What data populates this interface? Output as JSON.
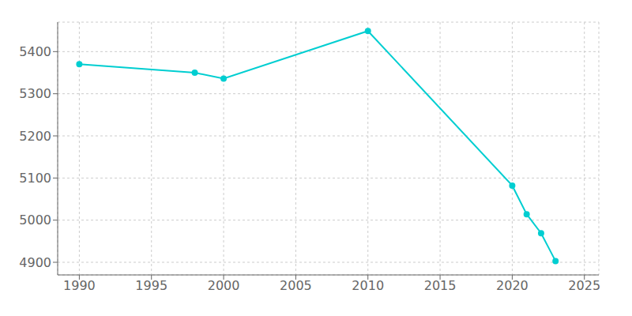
{
  "chart_data": {
    "type": "line",
    "x": [
      1990,
      1998,
      2000,
      2010,
      2020,
      2021,
      2022,
      2023
    ],
    "values": [
      5370,
      5350,
      5336,
      5449,
      5082,
      5014,
      4969,
      4903
    ],
    "color": "#00CED1",
    "marker": "circle",
    "xlim": [
      1988.5,
      2026
    ],
    "xticks": [
      1990,
      1995,
      2000,
      2005,
      2010,
      2015,
      2020,
      2025
    ],
    "ylim": [
      4870,
      5470
    ],
    "yticks": [
      4900,
      5000,
      5100,
      5200,
      5300,
      5400
    ],
    "grid": true
  }
}
